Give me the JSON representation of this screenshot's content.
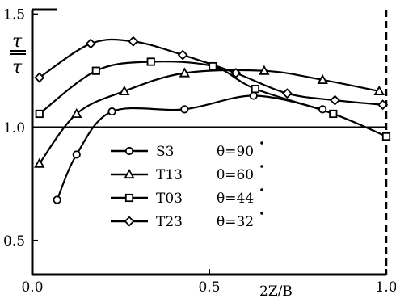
{
  "chart_data": {
    "type": "line",
    "xlabel": "2Z/B",
    "ylabel_top": "τ",
    "ylabel_bottom": "τ",
    "xlim": [
      0,
      1
    ],
    "ylim": [
      0.35,
      1.52
    ],
    "xticks": [
      {
        "value": 0,
        "label": "0.0"
      },
      {
        "value": 0.5,
        "label": "0.5"
      },
      {
        "value": 1,
        "label": "1.0"
      }
    ],
    "yticks": [
      {
        "value": 0.5,
        "label": "0.5"
      },
      {
        "value": 1.0,
        "label": "1.0"
      },
      {
        "value": 1.5,
        "label": "1.5"
      }
    ],
    "reference_line": 1.0,
    "grid": false,
    "legend_position": "center-left",
    "series": [
      {
        "name": "S3",
        "theta": "θ=90",
        "marker": "circle",
        "x": [
          0.07,
          0.125,
          0.225,
          0.43,
          0.625,
          0.82
        ],
        "y": [
          0.68,
          0.88,
          1.07,
          1.08,
          1.14,
          1.08
        ]
      },
      {
        "name": "T13",
        "theta": "θ=60",
        "marker": "triangle",
        "x": [
          0.02,
          0.125,
          0.26,
          0.43,
          0.655,
          0.82,
          0.98
        ],
        "y": [
          0.84,
          1.06,
          1.16,
          1.24,
          1.25,
          1.21,
          1.16
        ]
      },
      {
        "name": "T03",
        "theta": "θ=44",
        "marker": "square",
        "x": [
          0.02,
          0.18,
          0.335,
          0.51,
          0.63,
          0.85,
          1.0
        ],
        "y": [
          1.06,
          1.25,
          1.29,
          1.27,
          1.17,
          1.06,
          0.96
        ]
      },
      {
        "name": "T23",
        "theta": "θ=32",
        "marker": "diamond",
        "x": [
          0.02,
          0.165,
          0.285,
          0.425,
          0.575,
          0.72,
          0.855,
          0.99
        ],
        "y": [
          1.22,
          1.37,
          1.38,
          1.32,
          1.24,
          1.15,
          1.12,
          1.1
        ]
      }
    ]
  }
}
